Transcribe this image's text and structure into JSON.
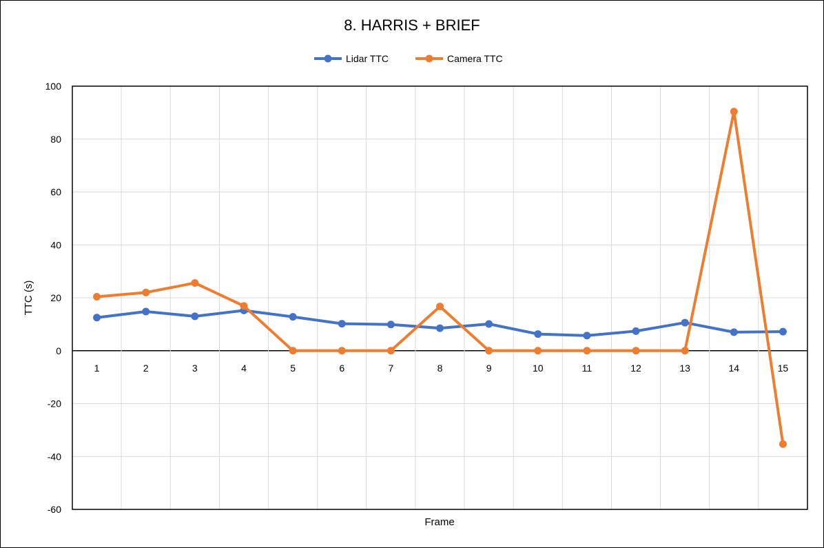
{
  "chart_data": {
    "type": "line",
    "title": "8. HARRIS + BRIEF",
    "xlabel": "Frame",
    "ylabel": "TTC (s)",
    "categories": [
      "1",
      "2",
      "3",
      "4",
      "5",
      "6",
      "7",
      "8",
      "9",
      "10",
      "11",
      "12",
      "13",
      "14",
      "15"
    ],
    "ylim": [
      -60,
      100
    ],
    "yticks": [
      100,
      80,
      60,
      40,
      20,
      0,
      -20,
      -40,
      -60
    ],
    "grid": true,
    "legend_position": "top",
    "series": [
      {
        "name": "Lidar TTC",
        "color": "#4472C4",
        "values": [
          12.5,
          14.8,
          13.0,
          15.2,
          12.8,
          10.2,
          9.9,
          8.5,
          10.1,
          6.3,
          5.7,
          7.4,
          10.6,
          7.0,
          7.2
        ]
      },
      {
        "name": "Camera TTC",
        "color": "#ED7D31",
        "values": [
          20.4,
          22.0,
          25.6,
          16.9,
          0.0,
          0.0,
          0.0,
          16.7,
          0.0,
          0.0,
          0.0,
          0.0,
          0.0,
          90.4,
          -35.3
        ]
      }
    ]
  }
}
